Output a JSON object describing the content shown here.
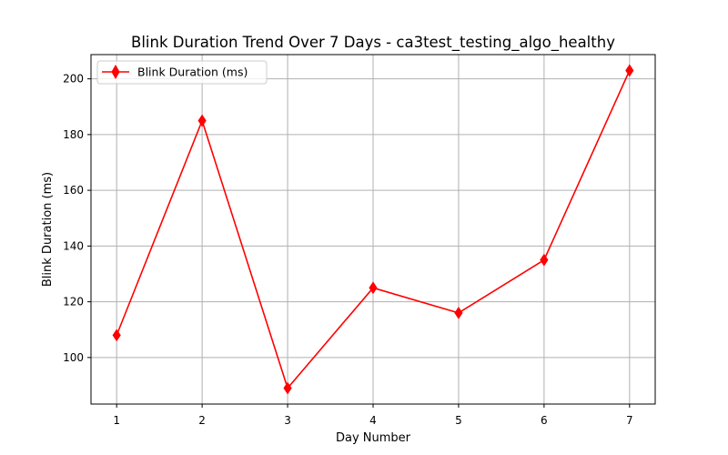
{
  "chart_data": {
    "type": "line",
    "title": "Blink Duration Trend Over 7 Days - ca3test_testing_algo_healthy",
    "xlabel": "Day Number",
    "ylabel": "Blink Duration (ms)",
    "x": [
      1,
      2,
      3,
      4,
      5,
      6,
      7
    ],
    "series": [
      {
        "name": "Blink Duration (ms)",
        "values": [
          108,
          185,
          89,
          125,
          116,
          135,
          203
        ],
        "color": "#ff0000",
        "marker": "diamond"
      }
    ],
    "xlim": [
      0.7,
      7.3
    ],
    "ylim": [
      83.3,
      208.7
    ],
    "xticks": [
      "1",
      "2",
      "3",
      "4",
      "5",
      "6",
      "7"
    ],
    "yticks": [
      "100",
      "120",
      "140",
      "160",
      "180",
      "200"
    ],
    "grid": true,
    "legend_position": "top-left"
  }
}
